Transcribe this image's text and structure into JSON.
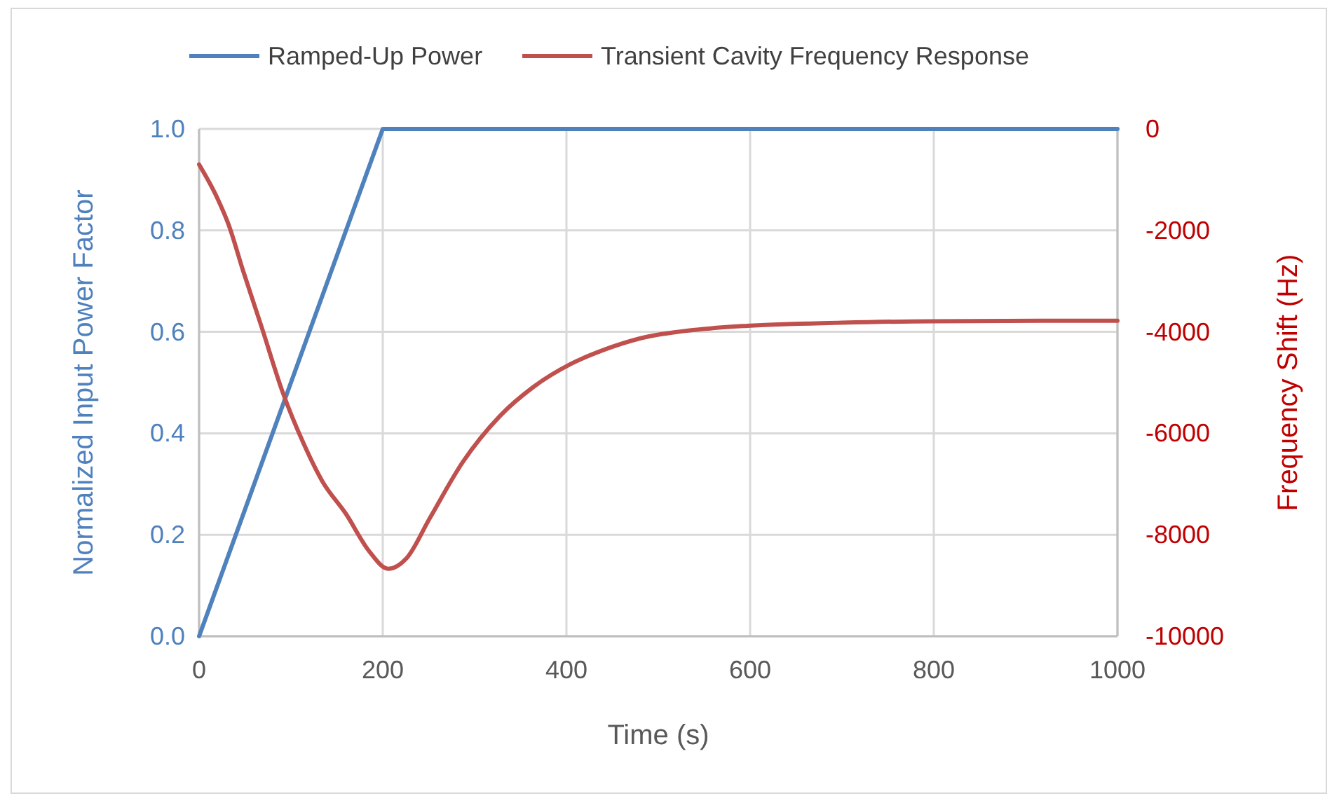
{
  "chart_data": {
    "type": "line",
    "xlabel": "Time (s)",
    "ylabel": "Normalized Input Power Factor",
    "y2label": "Frequency Shift (Hz)",
    "xlim": [
      0,
      1000
    ],
    "xticks": [
      0,
      200,
      400,
      600,
      800,
      1000
    ],
    "ylim": [
      0,
      1
    ],
    "yticks": [
      {
        "value": 0,
        "label": "0.0"
      },
      {
        "value": 0.2,
        "label": "0.2"
      },
      {
        "value": 0.4,
        "label": "0.4"
      },
      {
        "value": 0.6,
        "label": "0.6"
      },
      {
        "value": 0.8,
        "label": "0.8"
      },
      {
        "value": 1,
        "label": "1.0"
      }
    ],
    "y2lim": [
      -10000,
      0
    ],
    "y2ticks": [
      -10000,
      -8000,
      -6000,
      -4000,
      -2000,
      0
    ],
    "grid": true,
    "legend": "top",
    "marker": "none",
    "line_style": "solid",
    "series": [
      {
        "name": "Ramped-Up Power",
        "color": "#4f81bd",
        "x": [
          0,
          200,
          1000
        ],
        "values": [
          0,
          1,
          1
        ]
      },
      {
        "name": "Transient Cavity Frequency Response",
        "color": "#c0504d",
        "axis": "y2",
        "x": [
          0,
          20,
          32,
          48,
          68,
          91,
          114,
          134,
          160,
          185,
          206,
          226,
          251,
          287,
          328,
          363,
          404,
          440,
          480,
          540,
          597,
          700,
          800,
          1000
        ],
        "values": [
          -700,
          -1370,
          -1880,
          -2800,
          -3900,
          -5190,
          -6210,
          -6940,
          -7590,
          -8320,
          -8670,
          -8460,
          -7680,
          -6570,
          -5650,
          -5100,
          -4640,
          -4360,
          -4130,
          -3960,
          -3880,
          -3820,
          -3790,
          -3780
        ]
      }
    ]
  }
}
